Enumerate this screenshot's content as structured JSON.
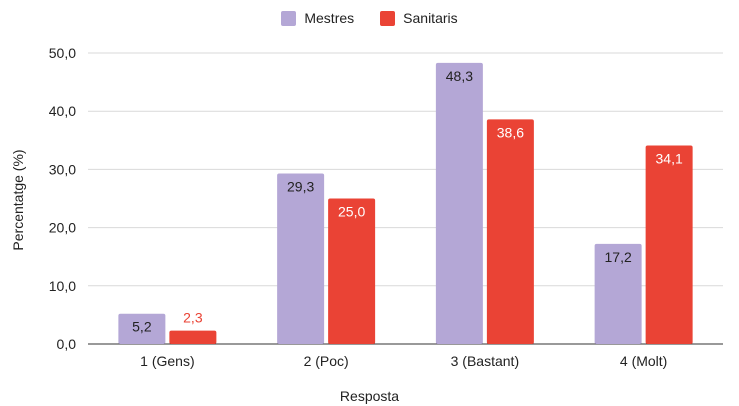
{
  "chart_data": {
    "type": "bar",
    "categories": [
      "1 (Gens)",
      "2 (Poc)",
      "3 (Bastant)",
      "4 (Molt)"
    ],
    "series": [
      {
        "name": "Mestres",
        "color": "#b4a7d6",
        "values": [
          5.2,
          29.3,
          48.3,
          17.2
        ],
        "labels": [
          "5,2",
          "29,3",
          "48,3",
          "17,2"
        ]
      },
      {
        "name": "Sanitaris",
        "color": "#ea4335",
        "values": [
          2.3,
          25.0,
          38.6,
          34.1
        ],
        "labels": [
          "2,3",
          "25,0",
          "38,6",
          "34,1"
        ]
      }
    ],
    "xlabel": "Resposta",
    "ylabel": "Percentatge (%)",
    "ylim": [
      0,
      50
    ],
    "yticks": [
      0,
      10,
      20,
      30,
      40,
      50
    ],
    "ytick_labels": [
      "0,0",
      "10,0",
      "20,0",
      "30,0",
      "40,0",
      "50,0"
    ],
    "grid": true,
    "legend_position": "top-center"
  }
}
